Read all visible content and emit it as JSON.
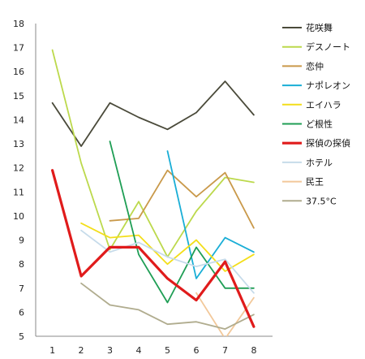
{
  "chart_data": {
    "type": "line",
    "title": "",
    "xlabel": "",
    "ylabel": "",
    "x": [
      1,
      2,
      3,
      4,
      5,
      6,
      7,
      8
    ],
    "ylim": [
      5,
      18
    ],
    "yticks": [
      5,
      6,
      7,
      8,
      9,
      10,
      11,
      12,
      13,
      14,
      15,
      16,
      17,
      18
    ],
    "grid": false,
    "legend_position": "right",
    "series": [
      {
        "name": "花咲舞",
        "color": "#4a4a3a",
        "emphasis": false,
        "values": [
          14.7,
          12.9,
          14.7,
          14.1,
          13.6,
          14.3,
          15.6,
          14.2
        ]
      },
      {
        "name": "デスノート",
        "color": "#bcd94c",
        "emphasis": false,
        "values": [
          16.9,
          12.2,
          8.6,
          10.6,
          8.3,
          10.2,
          11.6,
          11.4
        ]
      },
      {
        "name": "恋仲",
        "color": "#c9994a",
        "emphasis": false,
        "values": [
          null,
          null,
          9.8,
          9.9,
          11.9,
          10.8,
          11.8,
          9.5
        ]
      },
      {
        "name": "ナポレオン",
        "color": "#1aaed6",
        "emphasis": false,
        "values": [
          null,
          null,
          null,
          null,
          12.7,
          7.4,
          9.1,
          8.5
        ]
      },
      {
        "name": "エイハラ",
        "color": "#f3de1a",
        "emphasis": false,
        "values": [
          null,
          9.7,
          9.1,
          9.2,
          8.0,
          9.0,
          7.7,
          8.4
        ]
      },
      {
        "name": "ど根性",
        "color": "#1f9e55",
        "emphasis": false,
        "values": [
          null,
          null,
          13.1,
          8.4,
          6.4,
          8.7,
          7.0,
          7.0
        ]
      },
      {
        "name": "探偵の探偵",
        "color": "#e01b1b",
        "emphasis": true,
        "values": [
          11.9,
          7.5,
          8.7,
          8.7,
          7.4,
          6.5,
          8.1,
          5.4
        ]
      },
      {
        "name": "ホテル",
        "color": "#c6dbea",
        "emphasis": false,
        "values": [
          null,
          9.4,
          8.5,
          8.9,
          8.3,
          7.9,
          8.2,
          6.8
        ]
      },
      {
        "name": "民王",
        "color": "#f2c89a",
        "emphasis": false,
        "values": [
          null,
          null,
          null,
          null,
          null,
          6.8,
          4.9,
          6.6
        ]
      },
      {
        "name": "37.5°C",
        "color": "#b0ac8e",
        "emphasis": false,
        "values": [
          null,
          7.2,
          6.3,
          6.1,
          5.5,
          5.6,
          5.3,
          5.9
        ]
      }
    ]
  }
}
